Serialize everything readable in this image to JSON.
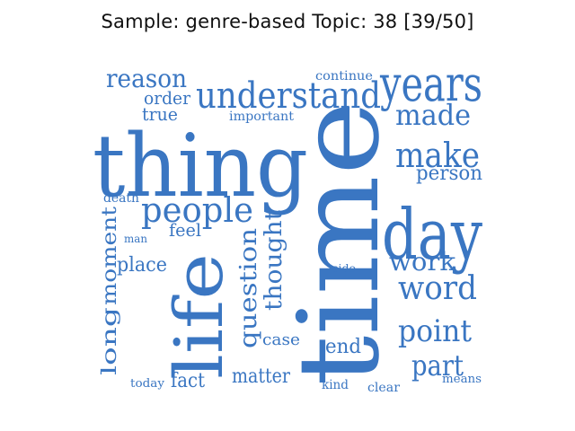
{
  "title": "Sample: genre-based Topic: 38 [39/50]",
  "word_color": "#3a76c2",
  "words": [
    {
      "text": "thing"
    },
    {
      "text": "time"
    },
    {
      "text": "life"
    },
    {
      "text": "day"
    },
    {
      "text": "years"
    },
    {
      "text": "understand"
    },
    {
      "text": "people"
    },
    {
      "text": "make"
    },
    {
      "text": "made"
    },
    {
      "text": "word"
    },
    {
      "text": "point"
    },
    {
      "text": "part"
    },
    {
      "text": "work"
    },
    {
      "text": "question"
    },
    {
      "text": "thought"
    },
    {
      "text": "moment"
    },
    {
      "text": "long"
    },
    {
      "text": "reason"
    },
    {
      "text": "place"
    },
    {
      "text": "person"
    },
    {
      "text": "end"
    },
    {
      "text": "fact"
    },
    {
      "text": "matter"
    },
    {
      "text": "order"
    },
    {
      "text": "true"
    },
    {
      "text": "feel"
    },
    {
      "text": "case"
    },
    {
      "text": "important"
    },
    {
      "text": "continue"
    },
    {
      "text": "death"
    },
    {
      "text": "man"
    },
    {
      "text": "side"
    },
    {
      "text": "today"
    },
    {
      "text": "kind"
    },
    {
      "text": "clear"
    },
    {
      "text": "means"
    }
  ]
}
